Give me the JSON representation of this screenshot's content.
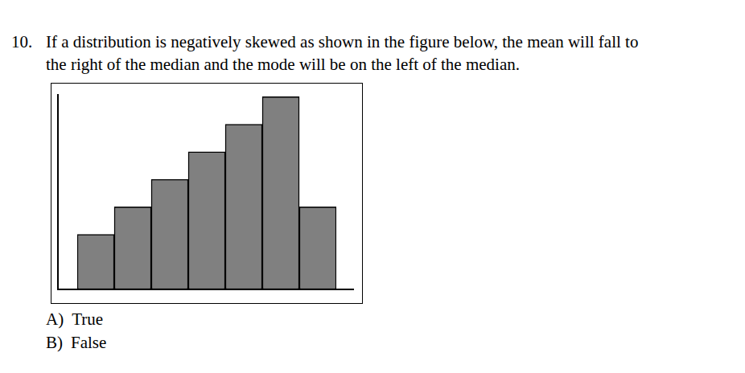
{
  "question": {
    "number": "10.",
    "lines": [
      "If a distribution is negatively skewed as shown in the figure below, the mean will fall to",
      "the right of the median and the mode will be on the left of the median."
    ]
  },
  "chart_data": {
    "type": "bar",
    "categories": [
      null,
      null,
      null,
      null,
      null,
      null,
      null
    ],
    "values": [
      2,
      3,
      4,
      5,
      6,
      7,
      3
    ],
    "color": "#808080",
    "ylim": [
      0,
      7.1
    ],
    "grid": false,
    "tick_labels": false
  },
  "options": [
    {
      "letter": "A)",
      "text": "True"
    },
    {
      "letter": "B)",
      "text": "False"
    }
  ]
}
